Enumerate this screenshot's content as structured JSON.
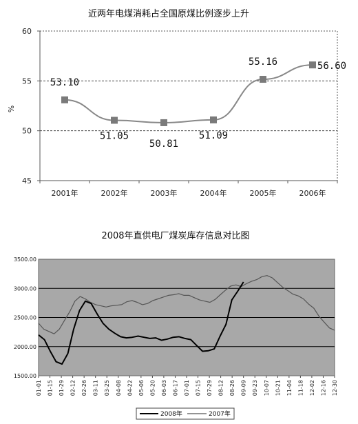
{
  "chart_data": [
    {
      "type": "line",
      "title": "近两年电煤消耗占全国原煤比例逐步上升",
      "ylabel": "%",
      "ylim": [
        45,
        60
      ],
      "yticks": [
        "45",
        "50",
        "55",
        "60"
      ],
      "categories": [
        "2001年",
        "2002年",
        "2003年",
        "2004年",
        "2005年",
        "2006年"
      ],
      "values": [
        53.1,
        51.05,
        50.81,
        51.09,
        55.16,
        56.6
      ],
      "data_labels": [
        "53.10",
        "51.05",
        "50.81",
        "51.09",
        "55.16",
        "56.60"
      ],
      "grid": "dashed at 50 and 55",
      "colors": {
        "line": "#888888",
        "marker": "#7a7a7a"
      }
    },
    {
      "type": "line",
      "title": "2008年直供电厂煤炭库存信息对比图",
      "ylim": [
        1500,
        3500
      ],
      "yticks": [
        "1500.00",
        "2000.00",
        "2500.00",
        "3000.00",
        "3500.00"
      ],
      "xticks": [
        "01-01",
        "01-15",
        "01-29",
        "02-12",
        "02-26",
        "03-11",
        "03-25",
        "04-08",
        "04-22",
        "05-06",
        "05-20",
        "06-03",
        "06-17",
        "07-01",
        "07-15",
        "07-29",
        "08-12",
        "08-26",
        "09-09",
        "09-23",
        "10-07",
        "10-21",
        "11-04",
        "11-18",
        "12-02",
        "12-16",
        "12-30"
      ],
      "legend": [
        "2008年",
        "2007年"
      ],
      "legend_position": "bottom",
      "background": "#a8a8a8",
      "series": [
        {
          "name": "2008年",
          "color": "#000000",
          "values": [
            2200,
            2120,
            1920,
            1740,
            1700,
            1880,
            2300,
            2620,
            2780,
            2740,
            2560,
            2400,
            2300,
            2230,
            2170,
            2150,
            2160,
            2180,
            2160,
            2140,
            2150,
            2110,
            2130,
            2160,
            2170,
            2140,
            2120,
            2020,
            1920,
            1930,
            1960,
            2180,
            2380,
            2800,
            2950,
            3110
          ]
        },
        {
          "name": "2007年",
          "color": "#555555",
          "values": [
            2400,
            2300,
            2260,
            2220,
            2300,
            2450,
            2600,
            2780,
            2860,
            2820,
            2760,
            2720,
            2700,
            2680,
            2700,
            2710,
            2720,
            2770,
            2790,
            2760,
            2720,
            2740,
            2790,
            2820,
            2850,
            2880,
            2890,
            2910,
            2880,
            2880,
            2840,
            2800,
            2780,
            2760,
            2810,
            2890,
            2970,
            3040,
            3060,
            3030,
            3080,
            3120,
            3150,
            3200,
            3220,
            3180,
            3100,
            3020,
            2960,
            2900,
            2870,
            2820,
            2730,
            2660,
            2520,
            2420,
            2320,
            2280
          ]
        }
      ]
    }
  ]
}
